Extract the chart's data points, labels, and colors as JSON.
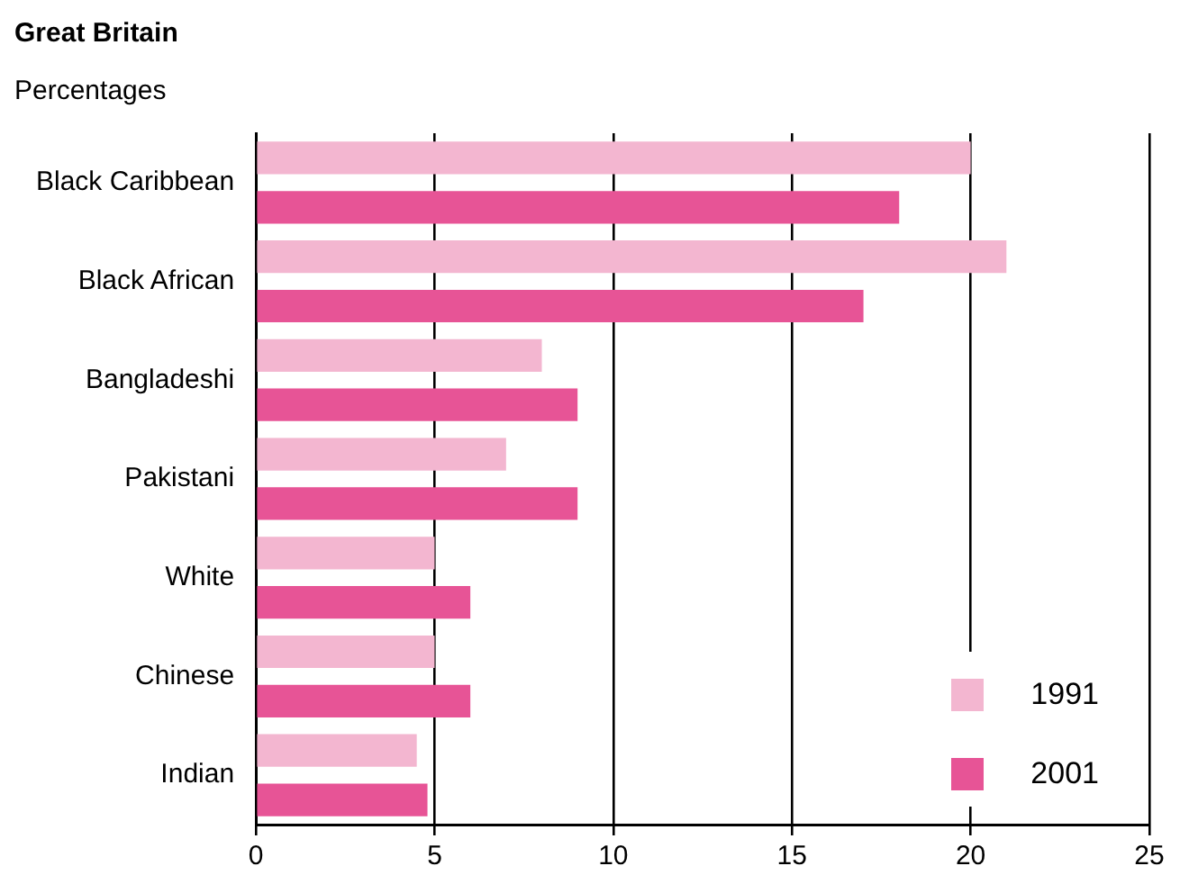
{
  "chart_data": {
    "type": "bar",
    "orientation": "horizontal",
    "title": "Great Britain",
    "subtitle": "Percentages",
    "categories": [
      "Black Caribbean",
      "Black African",
      "Bangladeshi",
      "Pakistani",
      "White",
      "Chinese",
      "Indian"
    ],
    "series": [
      {
        "name": "1991",
        "color": "#f3b6d0",
        "values": [
          20,
          21,
          8,
          7,
          5,
          5,
          4.5
        ]
      },
      {
        "name": "2001",
        "color": "#e75496",
        "values": [
          18,
          17,
          9,
          9,
          6,
          6,
          4.8
        ]
      }
    ],
    "xlim": [
      0,
      25
    ],
    "xticks": [
      0,
      5,
      10,
      15,
      20,
      25
    ],
    "grid": "x",
    "legend": "bottom right"
  }
}
